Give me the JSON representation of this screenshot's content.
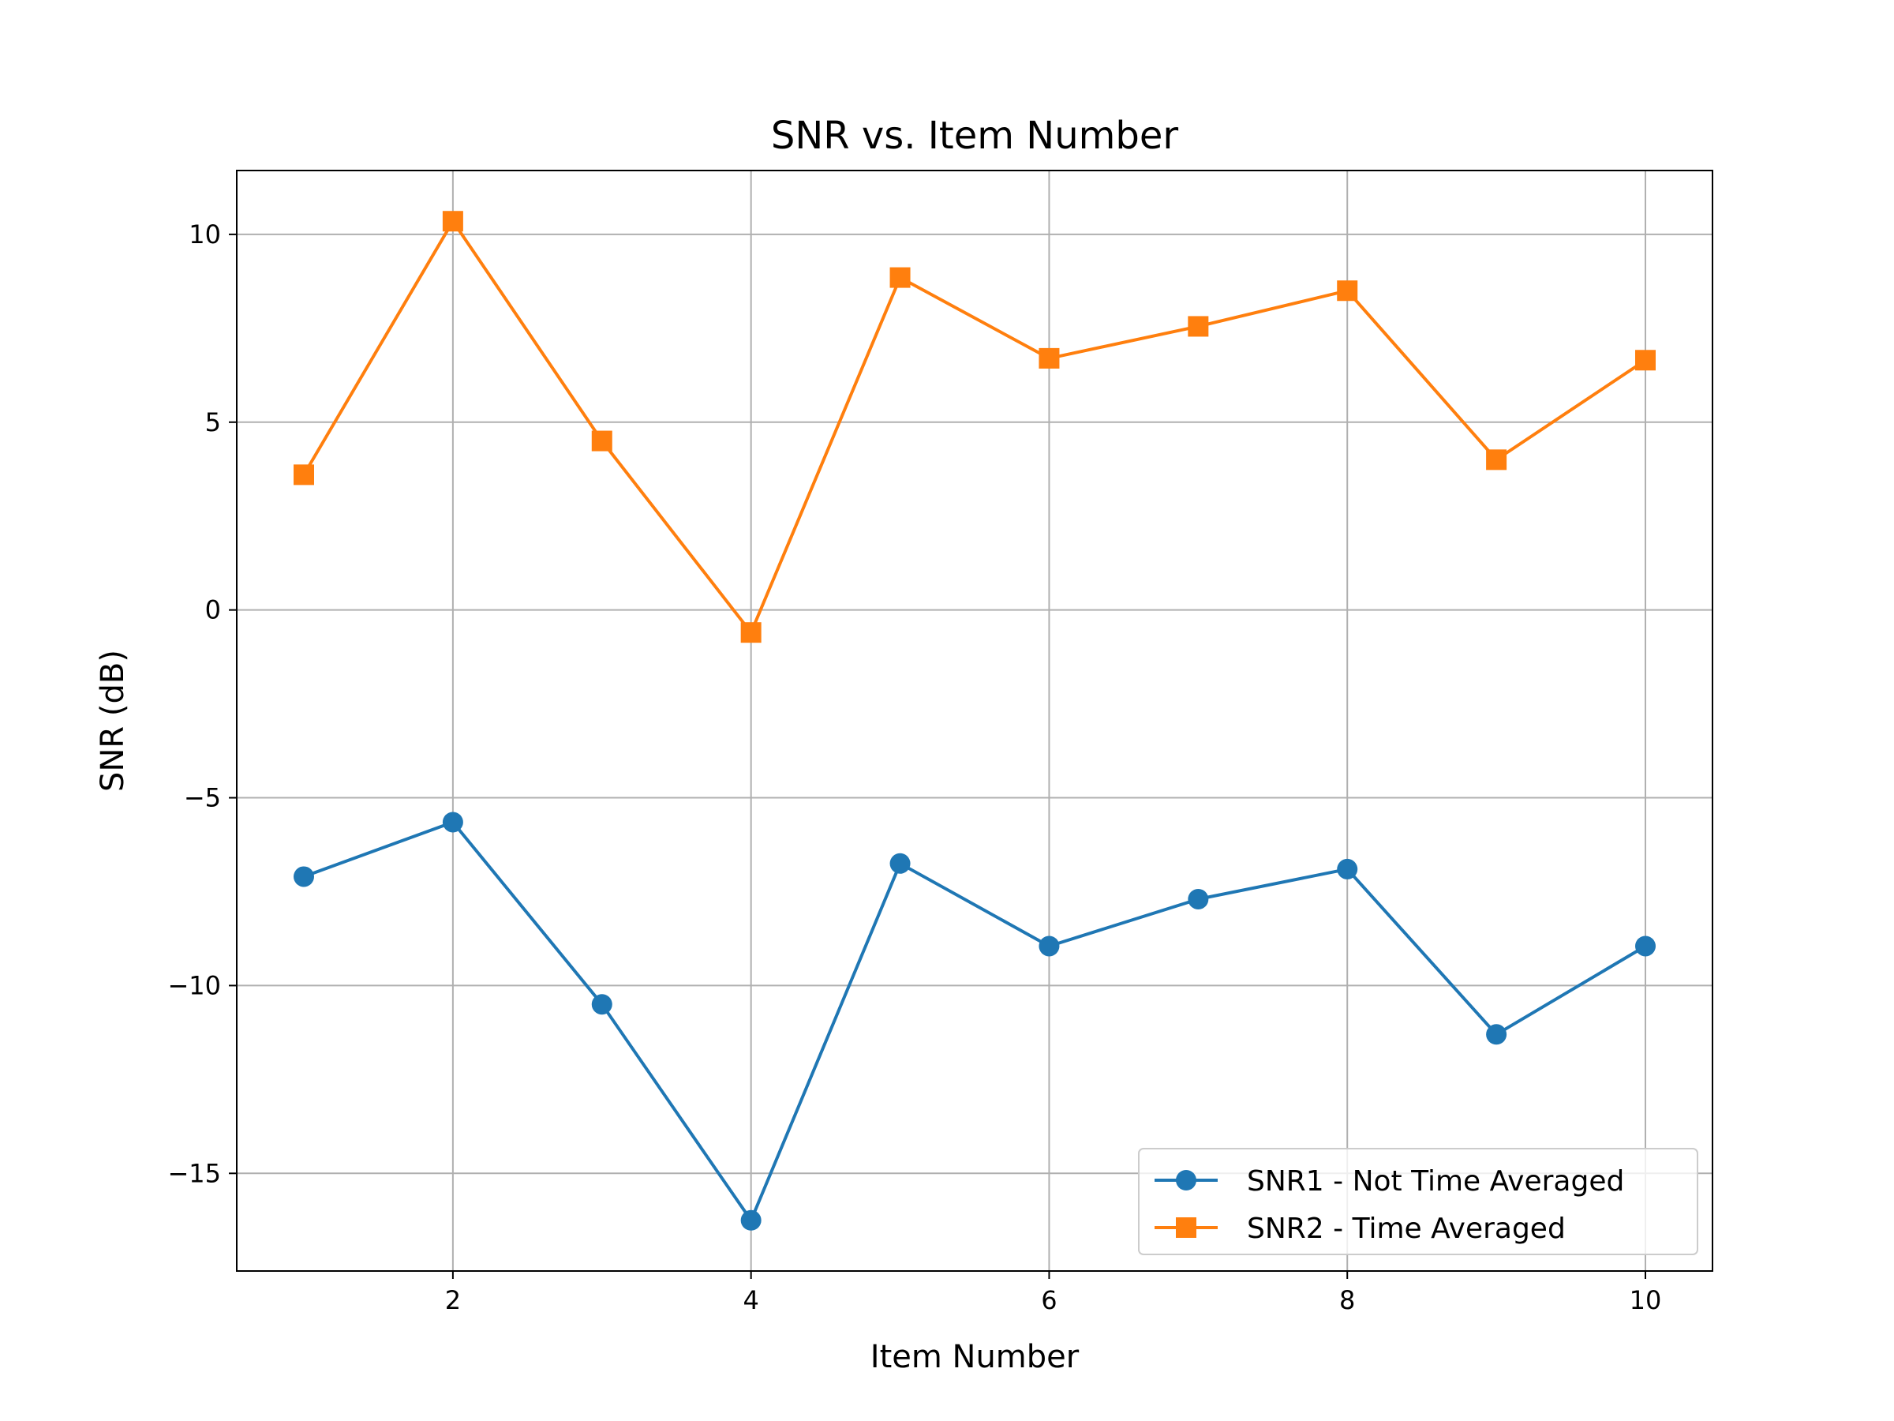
{
  "chart_data": {
    "type": "line",
    "title": "SNR vs. Item Number",
    "xlabel": "Item Number",
    "ylabel": "SNR (dB)",
    "xlim": [
      0.55,
      10.45
    ],
    "ylim": [
      -17.6,
      11.7
    ],
    "xticks": [
      2,
      4,
      6,
      8,
      10
    ],
    "yticks": [
      10,
      5,
      0,
      -5,
      -10,
      -15
    ],
    "ytick_labels": [
      "10",
      "5",
      "0",
      "−5",
      "−10",
      "−15"
    ],
    "grid": true,
    "legend_position": "bottom-right",
    "x": [
      1,
      2,
      3,
      4,
      5,
      6,
      7,
      8,
      9,
      10
    ],
    "series": [
      {
        "name": "SNR1 - Not Time Averaged",
        "color": "#1f77b4",
        "marker": "circle",
        "values": [
          -7.1,
          -5.65,
          -10.5,
          -16.25,
          -6.75,
          -8.95,
          -7.7,
          -6.9,
          -11.3,
          -8.95
        ]
      },
      {
        "name": "SNR2 - Time Averaged",
        "color": "#ff7f0e",
        "marker": "square",
        "values": [
          3.6,
          10.35,
          4.5,
          -0.6,
          8.85,
          6.7,
          7.55,
          8.5,
          4.0,
          6.65
        ]
      }
    ]
  }
}
